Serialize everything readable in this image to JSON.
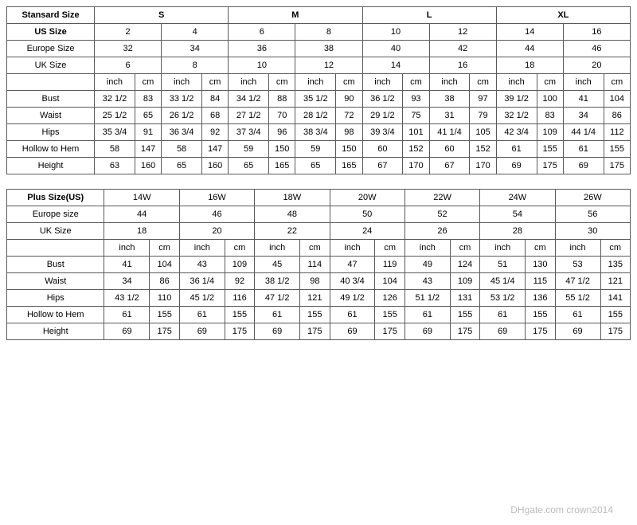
{
  "standard": {
    "title": "Stansard Size",
    "groups": [
      "S",
      "M",
      "L",
      "XL"
    ],
    "us_label": "US Size",
    "us": [
      "2",
      "4",
      "6",
      "8",
      "10",
      "12",
      "14",
      "16"
    ],
    "eu_label": "Europe Size",
    "eu": [
      "32",
      "34",
      "36",
      "38",
      "40",
      "42",
      "44",
      "46"
    ],
    "uk_label": "UK Size",
    "uk": [
      "6",
      "8",
      "10",
      "12",
      "14",
      "16",
      "18",
      "20"
    ],
    "unit_pairs": [
      "inch",
      "cm"
    ],
    "rows": [
      {
        "label": "Bust",
        "values": [
          "32 1/2",
          "83",
          "33 1/2",
          "84",
          "34 1/2",
          "88",
          "35 1/2",
          "90",
          "36 1/2",
          "93",
          "38",
          "97",
          "39 1/2",
          "100",
          "41",
          "104"
        ]
      },
      {
        "label": "Waist",
        "values": [
          "25 1/2",
          "65",
          "26 1/2",
          "68",
          "27 1/2",
          "70",
          "28 1/2",
          "72",
          "29 1/2",
          "75",
          "31",
          "79",
          "32 1/2",
          "83",
          "34",
          "86"
        ]
      },
      {
        "label": "Hips",
        "values": [
          "35 3/4",
          "91",
          "36 3/4",
          "92",
          "37 3/4",
          "96",
          "38 3/4",
          "98",
          "39 3/4",
          "101",
          "41 1/4",
          "105",
          "42 3/4",
          "109",
          "44 1/4",
          "112"
        ]
      },
      {
        "label": "Hollow to Hem",
        "values": [
          "58",
          "147",
          "58",
          "147",
          "59",
          "150",
          "59",
          "150",
          "60",
          "152",
          "60",
          "152",
          "61",
          "155",
          "61",
          "155"
        ]
      },
      {
        "label": "Height",
        "values": [
          "63",
          "160",
          "65",
          "160",
          "65",
          "165",
          "65",
          "165",
          "67",
          "170",
          "67",
          "170",
          "69",
          "175",
          "69",
          "175"
        ]
      }
    ]
  },
  "plus": {
    "title": "Plus Size(US)",
    "sizes": [
      "14W",
      "16W",
      "18W",
      "20W",
      "22W",
      "24W",
      "26W"
    ],
    "eu_label": "Europe size",
    "eu": [
      "44",
      "46",
      "48",
      "50",
      "52",
      "54",
      "56"
    ],
    "uk_label": "UK Size",
    "uk": [
      "18",
      "20",
      "22",
      "24",
      "26",
      "28",
      "30"
    ],
    "unit_pairs": [
      "inch",
      "cm"
    ],
    "rows": [
      {
        "label": "Bust",
        "values": [
          "41",
          "104",
          "43",
          "109",
          "45",
          "114",
          "47",
          "119",
          "49",
          "124",
          "51",
          "130",
          "53",
          "135"
        ]
      },
      {
        "label": "Waist",
        "values": [
          "34",
          "86",
          "36 1/4",
          "92",
          "38 1/2",
          "98",
          "40 3/4",
          "104",
          "43",
          "109",
          "45 1/4",
          "115",
          "47 1/2",
          "121"
        ]
      },
      {
        "label": "Hips",
        "values": [
          "43 1/2",
          "110",
          "45 1/2",
          "116",
          "47 1/2",
          "121",
          "49 1/2",
          "126",
          "51 1/2",
          "131",
          "53 1/2",
          "136",
          "55 1/2",
          "141"
        ]
      },
      {
        "label": "Hollow to Hem",
        "values": [
          "61",
          "155",
          "61",
          "155",
          "61",
          "155",
          "61",
          "155",
          "61",
          "155",
          "61",
          "155",
          "61",
          "155"
        ]
      },
      {
        "label": "Height",
        "values": [
          "69",
          "175",
          "69",
          "175",
          "69",
          "175",
          "69",
          "175",
          "69",
          "175",
          "69",
          "175",
          "69",
          "175"
        ]
      }
    ]
  },
  "watermark": "DHgate.com  crown2014"
}
